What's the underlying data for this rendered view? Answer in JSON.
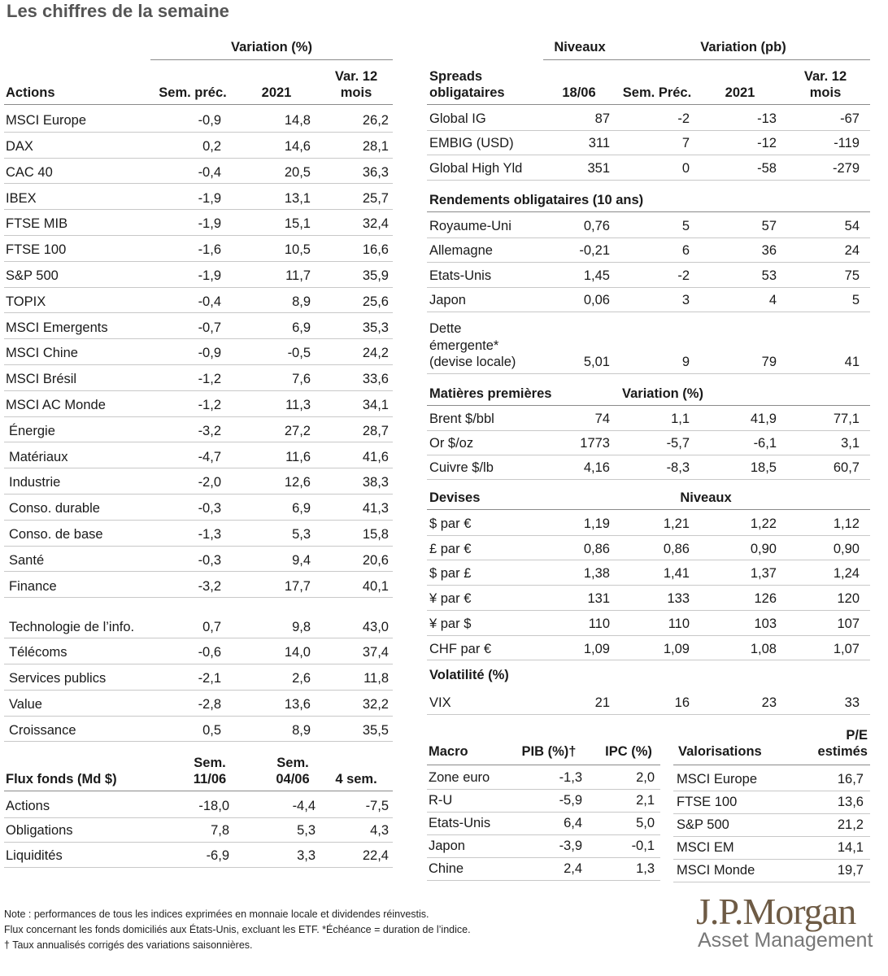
{
  "title": "Les chiffres de la semaine",
  "actions": {
    "group_header": "Variation (%)",
    "headers": [
      "Actions",
      "Sem. préc.",
      "2021",
      "Var. 12 mois"
    ],
    "rows": [
      [
        "MSCI Europe",
        "-0,9",
        "14,8",
        "26,2"
      ],
      [
        "DAX",
        "0,2",
        "14,6",
        "28,1"
      ],
      [
        "CAC 40",
        "-0,4",
        "20,5",
        "36,3"
      ],
      [
        "IBEX",
        "-1,9",
        "13,1",
        "25,7"
      ],
      [
        "FTSE MIB",
        "-1,9",
        "15,1",
        "32,4"
      ],
      [
        "FTSE 100",
        "-1,6",
        "10,5",
        "16,6"
      ],
      [
        "S&P 500",
        "-1,9",
        "11,7",
        "35,9"
      ],
      [
        "TOPIX",
        "-0,4",
        "8,9",
        "25,6"
      ],
      [
        "MSCI Emergents",
        "-0,7",
        "6,9",
        "35,3"
      ],
      [
        "MSCI Chine",
        "-0,9",
        "-0,5",
        "24,2"
      ],
      [
        "MSCI Brésil",
        "-1,2",
        "7,6",
        "33,6"
      ],
      [
        "MSCI AC Monde",
        "-1,2",
        "11,3",
        "34,1"
      ],
      [
        "Énergie",
        "-3,2",
        "27,2",
        "28,7"
      ],
      [
        "Matériaux",
        "-4,7",
        "11,6",
        "41,6"
      ],
      [
        "Industrie",
        "-2,0",
        "12,6",
        "38,3"
      ],
      [
        "Conso. durable",
        "-0,3",
        "6,9",
        "41,3"
      ],
      [
        "Conso. de base",
        "-1,3",
        "5,3",
        "15,8"
      ],
      [
        "Santé",
        "-0,3",
        "9,4",
        "20,6"
      ],
      [
        "Finance",
        "-3,2",
        "17,7",
        "40,1"
      ],
      [
        "Technologie de l’info.",
        "0,7",
        "9,8",
        "43,0"
      ],
      [
        "Télécoms",
        "-0,6",
        "14,0",
        "37,4"
      ],
      [
        "Services publics",
        "-2,1",
        "2,6",
        "11,8"
      ],
      [
        "Value",
        "-2,8",
        "13,6",
        "32,2"
      ],
      [
        "Croissance",
        "0,5",
        "8,9",
        "35,5"
      ]
    ]
  },
  "flux": {
    "headers": [
      "Flux fonds (Md $)",
      "Sem. 11/06",
      "Sem. 04/06",
      "4 sem."
    ],
    "rows": [
      [
        "Actions",
        "-18,0",
        "-4,4",
        "-7,5"
      ],
      [
        "Obligations",
        "7,8",
        "5,3",
        "4,3"
      ],
      [
        "Liquidités",
        "-6,9",
        "3,3",
        "22,4"
      ]
    ]
  },
  "spreads": {
    "group_headers": [
      "Niveaux",
      "Variation (pb)"
    ],
    "headers": [
      "Spreads obligataires",
      "18/06",
      "Sem. Préc.",
      "2021",
      "Var. 12 mois"
    ],
    "rows": [
      [
        "Global IG",
        "87",
        "-2",
        "-13",
        "-67"
      ],
      [
        "EMBIG (USD)",
        "311",
        "7",
        "-12",
        "-119"
      ],
      [
        "Global High Yld",
        "351",
        "0",
        "-58",
        "-279"
      ]
    ]
  },
  "rendements": {
    "title": "Rendements obligataires (10 ans)",
    "rows": [
      [
        "Royaume-Uni",
        "0,76",
        "5",
        "57",
        "54"
      ],
      [
        "Allemagne",
        "-0,21",
        "6",
        "36",
        "24"
      ],
      [
        "Etats-Unis",
        "1,45",
        "-2",
        "53",
        "75"
      ],
      [
        "Japon",
        "0,06",
        "3",
        "4",
        "5"
      ],
      [
        "Dette émergente* (devise locale)",
        "5,01",
        "9",
        "79",
        "41"
      ]
    ]
  },
  "matieres": {
    "headers": [
      "Matières premières",
      "Variation (%)"
    ],
    "rows": [
      [
        "Brent $/bbl",
        "74",
        "1,1",
        "41,9",
        "77,1"
      ],
      [
        "Or $/oz",
        "1773",
        "-5,7",
        "-6,1",
        "3,1"
      ],
      [
        "Cuivre $/lb",
        "4,16",
        "-8,3",
        "18,5",
        "60,7"
      ]
    ]
  },
  "devises": {
    "headers": [
      "Devises",
      "Niveaux"
    ],
    "rows": [
      [
        "$ par €",
        "1,19",
        "1,21",
        "1,22",
        "1,12"
      ],
      [
        "£ par €",
        "0,86",
        "0,86",
        "0,90",
        "0,90"
      ],
      [
        "$ par £",
        "1,38",
        "1,41",
        "1,37",
        "1,24"
      ],
      [
        "¥ par €",
        "131",
        "133",
        "126",
        "120"
      ],
      [
        "¥ par $",
        "110",
        "110",
        "103",
        "107"
      ],
      [
        "CHF par €",
        "1,09",
        "1,09",
        "1,08",
        "1,07"
      ]
    ]
  },
  "volatilite": {
    "title": "Volatilité (%)",
    "rows": [
      [
        "VIX",
        "21",
        "16",
        "23",
        "33"
      ]
    ]
  },
  "macro": {
    "headers": [
      "Macro",
      "PIB (%)†",
      "IPC (%)"
    ],
    "rows": [
      [
        "Zone euro",
        "-1,3",
        "2,0"
      ],
      [
        "R-U",
        "-5,9",
        "2,1"
      ],
      [
        "Etats-Unis",
        "6,4",
        "5,0"
      ],
      [
        "Japon",
        "-3,9",
        "-0,1"
      ],
      [
        "Chine",
        "2,4",
        "1,3"
      ]
    ]
  },
  "valorisations": {
    "headers": [
      "Valorisations",
      "P/E estimés"
    ],
    "rows": [
      [
        "MSCI Europe",
        "16,7"
      ],
      [
        "FTSE 100",
        "13,6"
      ],
      [
        "S&P 500",
        "21,2"
      ],
      [
        "MSCI EM",
        "14,1"
      ],
      [
        "MSCI Monde",
        "19,7"
      ]
    ]
  },
  "notes": [
    "Note : performances de tous les indices exprimées en monnaie locale et dividendes réinvestis.",
    "Flux concernant les fonds domiciliés aux États-Unis, excluant les ETF. *Échéance = duration de l’indice.",
    "† Taux annualisés corrigés des variations saisonnières."
  ],
  "logo": {
    "name": "J.P.Morgan",
    "sub": "Asset Management"
  }
}
